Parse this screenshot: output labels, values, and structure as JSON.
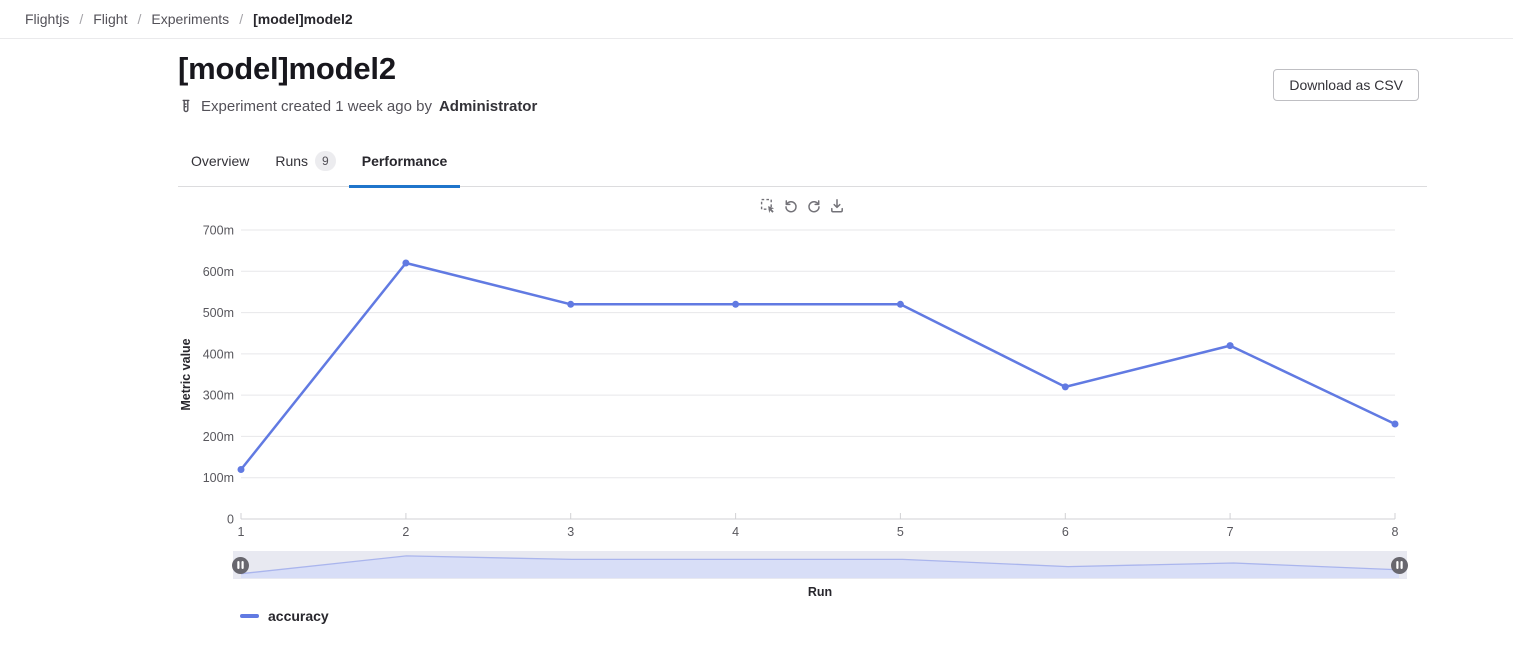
{
  "breadcrumb": {
    "separator": "/",
    "items": [
      {
        "label": "Flightjs",
        "current": false
      },
      {
        "label": "Flight",
        "current": false
      },
      {
        "label": "Experiments",
        "current": false
      },
      {
        "label": "[model]model2",
        "current": true
      }
    ]
  },
  "header": {
    "title": "[model]model2",
    "download_button": "Download as CSV"
  },
  "meta": {
    "icon": "test-tube-icon",
    "text": "Experiment created 1 week ago by",
    "author": "Administrator"
  },
  "tabs": [
    {
      "label": "Overview",
      "badge": null,
      "active": false
    },
    {
      "label": "Runs",
      "badge": "9",
      "active": false
    },
    {
      "label": "Performance",
      "badge": null,
      "active": true
    }
  ],
  "chart_toolbar": {
    "icons": [
      "marquee-zoom-icon",
      "undo-icon",
      "redo-icon",
      "download-icon"
    ]
  },
  "chart_data": {
    "type": "line",
    "title": "",
    "x": [
      1,
      2,
      3,
      4,
      5,
      6,
      7,
      8
    ],
    "xticks": [
      "1",
      "2",
      "3",
      "4",
      "5",
      "6",
      "7",
      "8"
    ],
    "series": [
      {
        "name": "accuracy",
        "color": "#617ae2",
        "values": [
          0.12,
          0.62,
          0.52,
          0.52,
          0.52,
          0.32,
          0.42,
          0.23
        ]
      }
    ],
    "xlabel": "Run",
    "ylabel": "Metric value",
    "ylim": [
      0,
      0.7
    ],
    "ytick_step": 0.1,
    "ytick_labels": [
      "0",
      "100m",
      "200m",
      "300m",
      "400m",
      "500m",
      "600m",
      "700m"
    ],
    "grid": true,
    "legend_position": "bottom-left",
    "has_range_slider": true,
    "range_slider": {
      "start_x": 1,
      "end_x": 8
    }
  },
  "colors": {
    "tab_active_underline": "#1f75cb",
    "chart_line": "#617ae2",
    "gridline": "#e7e7ea",
    "axis_line": "#d1d1d4",
    "tick_label": "#58575d",
    "slider_bg": "#f0f0f2",
    "slider_area_fill": "#dfe4f8",
    "slider_line": "#aeb9ee",
    "slider_handle": "#68676e",
    "badge_bg": "#ececef"
  }
}
